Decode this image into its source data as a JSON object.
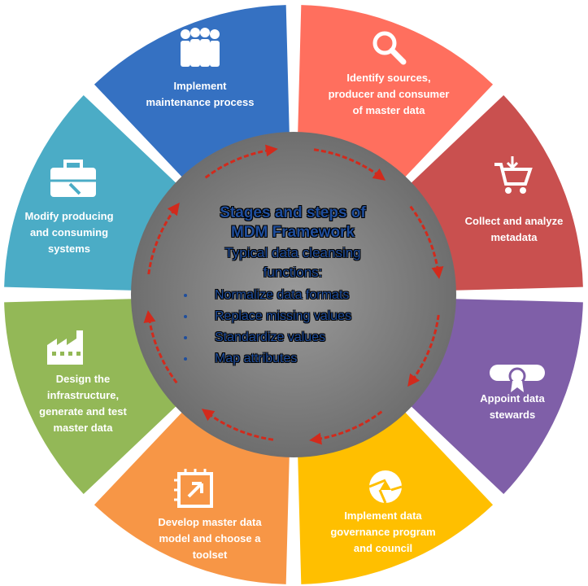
{
  "center": {
    "title_line1": "Stages and steps of",
    "title_line2": "MDM Framework",
    "subtitle_line1": "Typical data cleansing",
    "subtitle_line2": "functions:",
    "bullets": [
      "Normalize data formats",
      "Replace missing values",
      "Standardize values",
      "Map attributes"
    ]
  },
  "segments": [
    {
      "label": "Identify sources,\nproducer and consumer\nof master data",
      "color": "#ff6f5e",
      "icon": "magnifier-icon"
    },
    {
      "label": "Collect and analyze\nmetadata",
      "color": "#c9504f",
      "icon": "shopping-cart-icon"
    },
    {
      "label": "Appoint data\nstewards",
      "color": "#7f5fa8",
      "icon": "diploma-icon"
    },
    {
      "label": "Implement data\ngovernance program\nand council",
      "color": "#ffbf00",
      "icon": "aperture-icon"
    },
    {
      "label": "Develop master data\nmodel and choose a\ntoolset",
      "color": "#f79646",
      "icon": "chip-icon"
    },
    {
      "label": "Design the\ninfrastructure,\ngenerate and test\nmaster data",
      "color": "#93b857",
      "icon": "factory-icon"
    },
    {
      "label": "Modify producing\nand consuming\nsystems",
      "color": "#4bacc6",
      "icon": "toolbox-icon"
    },
    {
      "label": "Implement\nmaintenance process",
      "color": "#3571c2",
      "icon": "people-icon"
    }
  ],
  "colors": {
    "ring_inner": "#8a8a8a",
    "arrow": "#d22a1c",
    "center_text": "#1f4e9d"
  }
}
